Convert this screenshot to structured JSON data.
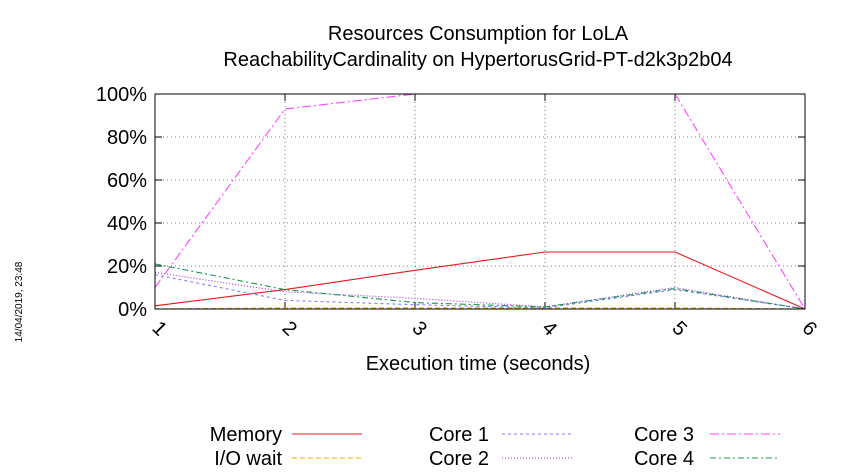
{
  "chart_data": {
    "type": "line",
    "title_lines": [
      "Resources Consumption for LoLA",
      "ReachabilityCardinality on HypertorusGrid-PT-d2k3p2b04"
    ],
    "xlabel": "Execution time (seconds)",
    "ylabel": "",
    "x": [
      1,
      2,
      3,
      4,
      5,
      6
    ],
    "xlim": [
      1,
      6
    ],
    "ylim": [
      0,
      100
    ],
    "x_ticks": [
      "1",
      "2",
      "3",
      "4",
      "5",
      "6"
    ],
    "y_ticks": [
      {
        "value": 0,
        "label": "0%"
      },
      {
        "value": 20,
        "label": "20%"
      },
      {
        "value": 40,
        "label": "40%"
      },
      {
        "value": 60,
        "label": "60%"
      },
      {
        "value": 80,
        "label": "80%"
      },
      {
        "value": 100,
        "label": "100%"
      }
    ],
    "grid": true,
    "legend_position": "bottom",
    "series": [
      {
        "name": "Memory",
        "color": "#e41a1c",
        "dash": "",
        "values": [
          1.5,
          9,
          18,
          26.5,
          26.5,
          0
        ]
      },
      {
        "name": "I/O wait",
        "color": "#e6ab02",
        "dash": "5,3",
        "values": [
          0,
          0.5,
          0.5,
          0.5,
          0.5,
          0
        ]
      },
      {
        "name": "Core 1",
        "color": "#7f7fff",
        "dash": "3,3",
        "values": [
          16,
          4,
          2,
          0.5,
          9,
          0
        ]
      },
      {
        "name": "Core 2",
        "color": "#9933cc",
        "dash": "1,2",
        "values": [
          17,
          8,
          5,
          1,
          10,
          0
        ]
      },
      {
        "name": "Core 3",
        "color": "#ff44ff",
        "dash": "9,3,2,3",
        "values": [
          10,
          93,
          100,
          100,
          100,
          0
        ]
      },
      {
        "name": "Core 4",
        "color": "#1a9850",
        "dash": "6,3,2,3",
        "values": [
          21,
          9,
          3,
          1,
          9.5,
          0
        ]
      }
    ]
  },
  "timestamp": "14/04/2019, 23:48"
}
